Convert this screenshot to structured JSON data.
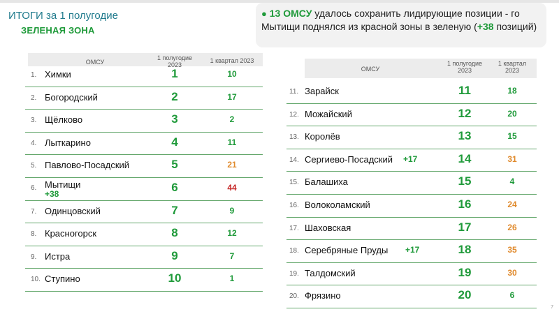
{
  "header": {
    "title": "ИТОГИ за 1 полугодие",
    "subtitle": "ЗЕЛЕНАЯ ЗОНА"
  },
  "callout": {
    "bullet": "●",
    "highlight_count": "13 ОМСУ",
    "text_part1": " удалось сохранить лидирующие позиции - го Мытищи поднялся из красной зоны в зеленую (",
    "highlight_plus": "+38",
    "text_part2": " позиций)"
  },
  "colors": {
    "green": "#1f9a3a",
    "orange": "#e08a2c",
    "red": "#c62828",
    "title_teal": "#1f7a8c"
  },
  "left_table": {
    "columns": {
      "omsu": "ОМСУ",
      "h1": "1 полугодие 2023",
      "q1": "1 квартал 2023"
    },
    "rows": [
      {
        "num": "1.",
        "name": "Химки",
        "plus": "",
        "h1": "1",
        "q1": "10",
        "q1_color": "green"
      },
      {
        "num": "2.",
        "name": "Богородский",
        "plus": "",
        "h1": "2",
        "q1": "17",
        "q1_color": "green"
      },
      {
        "num": "3.",
        "name": "Щёлково",
        "plus": "",
        "h1": "3",
        "q1": "2",
        "q1_color": "green"
      },
      {
        "num": "4.",
        "name": "Лыткарино",
        "plus": "",
        "h1": "4",
        "q1": "11",
        "q1_color": "green"
      },
      {
        "num": "5.",
        "name": "Павлово-Посадский",
        "plus": "",
        "h1": "5",
        "q1": "21",
        "q1_color": "orange"
      },
      {
        "num": "6.",
        "name": "Мытищи",
        "plus": "+38",
        "h1": "6",
        "q1": "44",
        "q1_color": "red"
      },
      {
        "num": "7.",
        "name": "Одинцовский",
        "plus": "",
        "h1": "7",
        "q1": "9",
        "q1_color": "green"
      },
      {
        "num": "8.",
        "name": "Красногорск",
        "plus": "",
        "h1": "8",
        "q1": "12",
        "q1_color": "green"
      },
      {
        "num": "9.",
        "name": "Истра",
        "plus": "",
        "h1": "9",
        "q1": "7",
        "q1_color": "green"
      },
      {
        "num": "10.",
        "name": "Ступино",
        "plus": "",
        "h1": "10",
        "q1": "1",
        "q1_color": "green"
      }
    ]
  },
  "right_table": {
    "columns": {
      "omsu": "ОМСУ",
      "h1": "1 полугодие 2023",
      "q1": "1 квартал 2023"
    },
    "rows": [
      {
        "num": "11.",
        "name": "Зарайск",
        "plus": "",
        "h1": "11",
        "q1": "18",
        "q1_color": "green"
      },
      {
        "num": "12.",
        "name": "Можайский",
        "plus": "",
        "h1": "12",
        "q1": "20",
        "q1_color": "green"
      },
      {
        "num": "13.",
        "name": "Королёв",
        "plus": "",
        "h1": "13",
        "q1": "15",
        "q1_color": "green"
      },
      {
        "num": "14.",
        "name": "Сергиево-Посадский",
        "plus": "+17",
        "h1": "14",
        "q1": "31",
        "q1_color": "orange"
      },
      {
        "num": "15.",
        "name": "Балашиха",
        "plus": "",
        "h1": "15",
        "q1": "4",
        "q1_color": "green"
      },
      {
        "num": "16.",
        "name": "Волоколамский",
        "plus": "",
        "h1": "16",
        "q1": "24",
        "q1_color": "orange"
      },
      {
        "num": "17.",
        "name": "Шаховская",
        "plus": "",
        "h1": "17",
        "q1": "26",
        "q1_color": "orange"
      },
      {
        "num": "18.",
        "name": "Серебряные Пруды",
        "plus": "+17",
        "h1": "18",
        "q1": "35",
        "q1_color": "orange"
      },
      {
        "num": "19.",
        "name": "Талдомский",
        "plus": "",
        "h1": "19",
        "q1": "30",
        "q1_color": "orange"
      },
      {
        "num": "20.",
        "name": "Фрязино",
        "plus": "",
        "h1": "20",
        "q1": "6",
        "q1_color": "green"
      }
    ]
  },
  "page_number": "7"
}
